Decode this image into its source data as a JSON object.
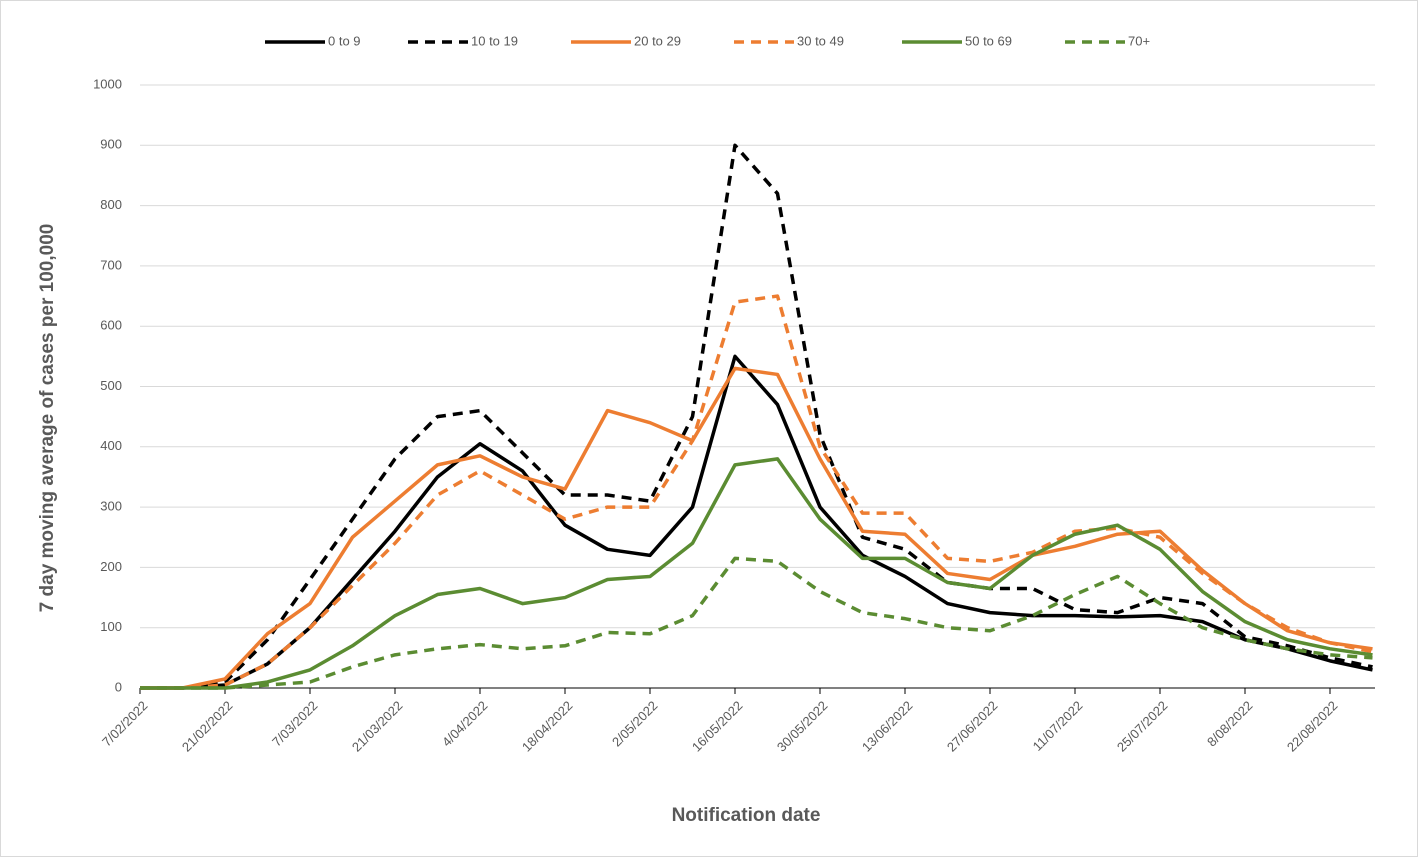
{
  "chart_data": {
    "type": "line",
    "y_label": "7 day moving average of cases per 100,000",
    "x_label": "Notification date",
    "categories": [
      "7/02/2022",
      null,
      "21/02/2022",
      null,
      "7/03/2022",
      null,
      "21/03/2022",
      null,
      "4/04/2022",
      null,
      "18/04/2022",
      null,
      "2/05/2022",
      null,
      "16/05/2022",
      null,
      "30/05/2022",
      null,
      "13/06/2022",
      null,
      "27/06/2022",
      null,
      "11/07/2022",
      null,
      "25/07/2022",
      null,
      "8/08/2022",
      null,
      "22/08/2022",
      null
    ],
    "ylim": [
      0,
      1000
    ],
    "yticks": [
      0,
      100,
      200,
      300,
      400,
      500,
      600,
      700,
      800,
      900,
      1000
    ],
    "grid": true,
    "legend": "top",
    "series": [
      {
        "name": "0 to 9",
        "color": "#000000",
        "dashed": false,
        "values": [
          0,
          0,
          5,
          40,
          100,
          180,
          260,
          350,
          405,
          360,
          270,
          230,
          220,
          300,
          550,
          470,
          300,
          220,
          185,
          140,
          125,
          120,
          120,
          118,
          120,
          110,
          80,
          65,
          45,
          30
        ]
      },
      {
        "name": "10 to 19",
        "color": "#000000",
        "dashed": true,
        "values": [
          0,
          0,
          10,
          80,
          180,
          280,
          380,
          450,
          460,
          390,
          320,
          320,
          310,
          450,
          900,
          820,
          420,
          250,
          230,
          175,
          165,
          165,
          130,
          125,
          150,
          140,
          85,
          70,
          50,
          35
        ]
      },
      {
        "name": "20 to 29",
        "color": "#ed7d31",
        "dashed": false,
        "values": [
          0,
          0,
          15,
          90,
          140,
          250,
          310,
          370,
          385,
          350,
          330,
          460,
          440,
          410,
          530,
          520,
          380,
          260,
          255,
          190,
          180,
          220,
          235,
          255,
          260,
          195,
          140,
          95,
          75,
          65
        ]
      },
      {
        "name": "30 to 49",
        "color": "#ed7d31",
        "dashed": true,
        "values": [
          0,
          0,
          5,
          40,
          100,
          170,
          240,
          320,
          360,
          320,
          280,
          300,
          300,
          410,
          640,
          650,
          400,
          290,
          290,
          215,
          210,
          225,
          260,
          265,
          250,
          190,
          140,
          100,
          75,
          60
        ]
      },
      {
        "name": "50 to 69",
        "color": "#5b8c32",
        "dashed": false,
        "values": [
          0,
          0,
          0,
          10,
          30,
          70,
          120,
          155,
          165,
          140,
          150,
          180,
          185,
          240,
          370,
          380,
          280,
          215,
          215,
          175,
          165,
          220,
          255,
          270,
          230,
          160,
          110,
          80,
          65,
          55
        ]
      },
      {
        "name": "70+",
        "color": "#5b8c32",
        "dashed": true,
        "values": [
          0,
          0,
          0,
          5,
          10,
          35,
          55,
          65,
          72,
          65,
          70,
          92,
          90,
          120,
          215,
          210,
          160,
          125,
          115,
          100,
          95,
          120,
          155,
          185,
          140,
          100,
          80,
          65,
          55,
          50
        ]
      }
    ]
  }
}
